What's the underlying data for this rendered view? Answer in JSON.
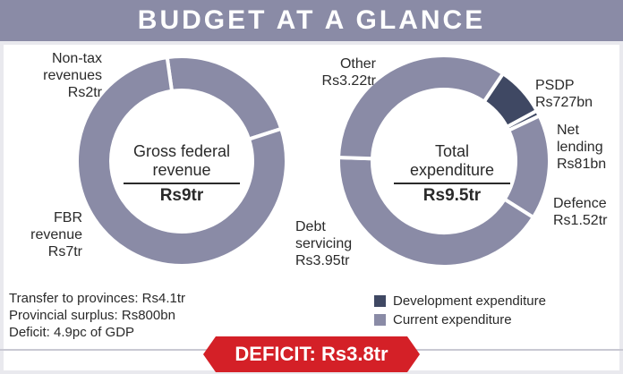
{
  "header": {
    "title": "BUDGET AT A GLANCE"
  },
  "colors": {
    "development": "#3f4863",
    "current": "#8a8ba6",
    "deficit": "#d42027"
  },
  "chart_data": [
    {
      "type": "pie",
      "donut": true,
      "center_label": "Gross federal revenue",
      "center_value": "Rs9tr",
      "slices": [
        {
          "label": "FBR revenue",
          "value_text": "Rs7tr",
          "value": 7,
          "category": "current"
        },
        {
          "label": "Non-tax revenues",
          "value_text": "Rs2tr",
          "value": 2,
          "category": "current"
        }
      ]
    },
    {
      "type": "pie",
      "donut": true,
      "center_label": "Total expenditure",
      "center_value": "Rs9.5tr",
      "slices": [
        {
          "label": "PSDP",
          "value_text": "Rs727bn",
          "value": 0.727,
          "category": "development"
        },
        {
          "label": "Net lending",
          "value_text": "Rs81bn",
          "value": 0.081,
          "category": "development"
        },
        {
          "label": "Defence",
          "value_text": "Rs1.52tr",
          "value": 1.52,
          "category": "current"
        },
        {
          "label": "Debt servicing",
          "value_text": "Rs3.95tr",
          "value": 3.95,
          "category": "current"
        },
        {
          "label": "Other",
          "value_text": "Rs3.22tr",
          "value": 3.22,
          "category": "current"
        }
      ]
    }
  ],
  "labels": {
    "nontax": [
      "Non-tax",
      "revenues",
      "Rs2tr"
    ],
    "fbr": [
      "FBR",
      "revenue",
      "Rs7tr"
    ],
    "other": [
      "Other",
      "Rs3.22tr"
    ],
    "psdp": [
      "PSDP",
      "Rs727bn"
    ],
    "netlending": [
      "Net",
      "lending",
      "Rs81bn"
    ],
    "defence": [
      "Defence",
      "Rs1.52tr"
    ],
    "debt": [
      "Debt",
      "servicing",
      "Rs3.95tr"
    ],
    "left_center": [
      "Gross federal",
      "revenue",
      "Rs9tr"
    ],
    "right_center": [
      "Total",
      "expenditure",
      "Rs9.5tr"
    ]
  },
  "notes": [
    "Transfer to provinces: Rs4.1tr",
    "Provincial surplus: Rs800bn",
    "Deficit: 4.9pc of GDP"
  ],
  "legend": [
    {
      "label": "Development expenditure",
      "category": "development"
    },
    {
      "label": "Current expenditure",
      "category": "current"
    }
  ],
  "deficit": {
    "label": "DEFICIT: Rs3.8tr"
  }
}
